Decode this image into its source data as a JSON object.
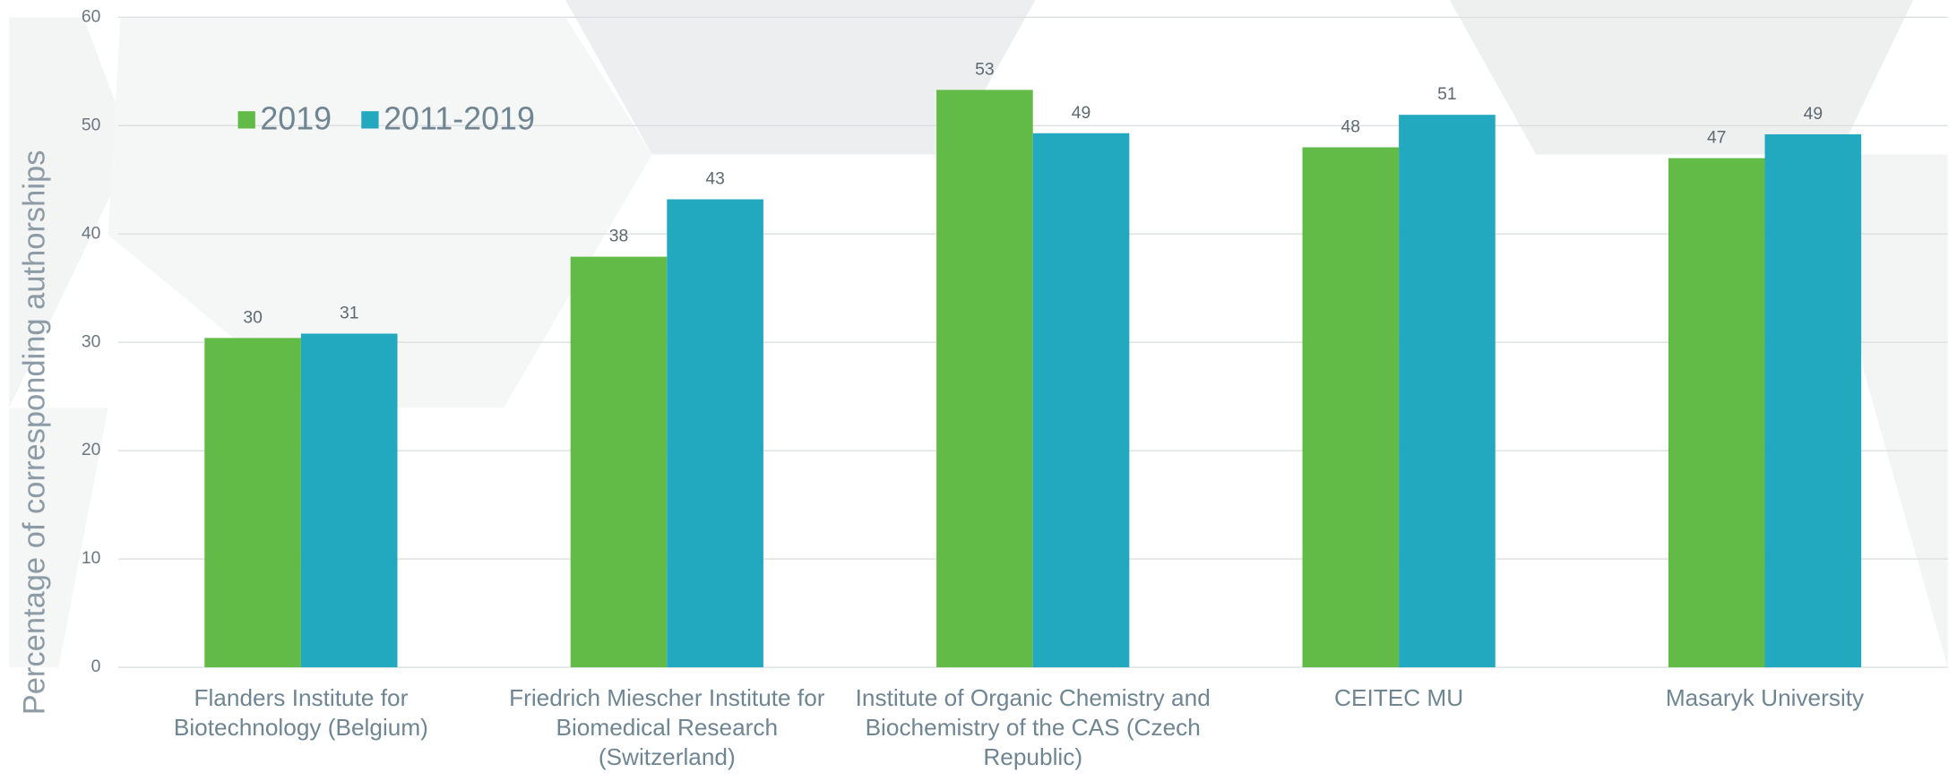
{
  "chart_data": {
    "type": "bar",
    "y_label": "Percentage of corresponding authorships",
    "categories": [
      "Flanders Institute for Biotechnology (Belgium)",
      "Friedrich Miescher Institute for Biomedical Research (Switzerland)",
      "Institute of Organic Chemistry and Biochemistry of the CAS (Czech Republic)",
      "CEITEC MU",
      "Masaryk University"
    ],
    "series": [
      {
        "name": "2019",
        "color": "#62bb46",
        "values": [
          30.4,
          37.9,
          53.3,
          48.0,
          47.0
        ],
        "value_labels": [
          "30",
          "38",
          "53",
          "48",
          "47"
        ]
      },
      {
        "name": "2011-2019",
        "color": "#22a9c0",
        "values": [
          30.8,
          43.2,
          49.3,
          51.0,
          49.2
        ],
        "value_labels": [
          "31",
          "43",
          "49",
          "51",
          "49"
        ]
      }
    ],
    "ylim": [
      0,
      60
    ],
    "yticks": [
      0,
      10,
      20,
      30,
      40,
      50,
      60
    ],
    "grid": true,
    "legend": "top-left"
  }
}
